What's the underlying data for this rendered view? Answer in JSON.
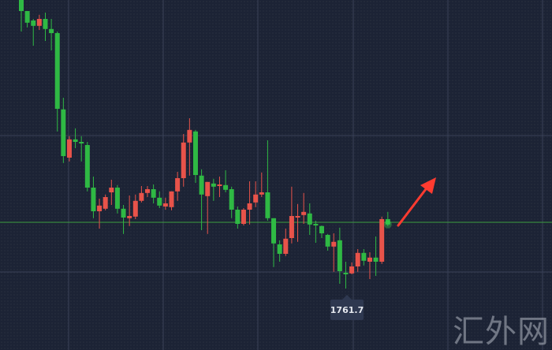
{
  "chart_data": {
    "type": "candlestick",
    "title": "",
    "xlabel": "",
    "ylabel": "",
    "colors": {
      "up": "#e8534a",
      "down": "#2fb944",
      "background": "#1c2335",
      "grid": "#3a4258",
      "current_line": "#3c9c3f",
      "arrow": "#ff3b30"
    },
    "grid": true,
    "price_label": "1761.7",
    "current_price_line": 1782.7,
    "candles": [
      [
        1853.2,
        1853.2,
        1843.2,
        1849.7
      ],
      [
        1849.7,
        1849.7,
        1844.5,
        1846.0
      ],
      [
        1846.7,
        1847.2,
        1838.7,
        1845.0
      ],
      [
        1845.0,
        1848.5,
        1843.7,
        1847.2
      ],
      [
        1847.2,
        1849.2,
        1840.2,
        1844.0
      ],
      [
        1844.0,
        1847.2,
        1837.2,
        1842.7
      ],
      [
        1842.7,
        1843.2,
        1811.5,
        1818.7
      ],
      [
        1818.5,
        1822.2,
        1801.5,
        1803.7
      ],
      [
        1803.2,
        1810.0,
        1802.0,
        1809.0
      ],
      [
        1809.0,
        1812.5,
        1806.2,
        1808.2
      ],
      [
        1808.2,
        1810.0,
        1802.0,
        1807.7
      ],
      [
        1807.2,
        1808.2,
        1792.5,
        1793.7
      ],
      [
        1793.7,
        1797.2,
        1784.0,
        1786.2
      ],
      [
        1786.2,
        1790.2,
        1780.7,
        1788.0
      ],
      [
        1787.0,
        1791.5,
        1786.5,
        1790.7
      ],
      [
        1792.2,
        1796.2,
        1788.2,
        1793.7
      ],
      [
        1793.7,
        1794.5,
        1785.5,
        1787.0
      ],
      [
        1787.0,
        1788.2,
        1779.0,
        1784.2
      ],
      [
        1784.0,
        1791.2,
        1781.5,
        1784.7
      ],
      [
        1784.5,
        1791.5,
        1783.7,
        1789.5
      ],
      [
        1789.5,
        1794.2,
        1789.0,
        1792.0
      ],
      [
        1792.0,
        1794.2,
        1790.7,
        1793.2
      ],
      [
        1793.2,
        1794.7,
        1788.7,
        1790.5
      ],
      [
        1790.5,
        1792.5,
        1787.2,
        1788.0
      ],
      [
        1787.7,
        1790.5,
        1786.7,
        1788.7
      ],
      [
        1787.5,
        1792.5,
        1786.5,
        1792.5
      ],
      [
        1792.5,
        1798.7,
        1789.5,
        1796.7
      ],
      [
        1796.7,
        1810.7,
        1794.0,
        1808.0
      ],
      [
        1808.0,
        1815.7,
        1797.5,
        1812.0
      ],
      [
        1811.5,
        1812.0,
        1795.2,
        1797.7
      ],
      [
        1797.5,
        1799.5,
        1780.2,
        1791.5
      ],
      [
        1791.0,
        1795.5,
        1779.0,
        1795.5
      ],
      [
        1795.0,
        1796.5,
        1789.5,
        1794.0
      ],
      [
        1794.2,
        1797.2,
        1790.7,
        1794.7
      ],
      [
        1794.5,
        1799.2,
        1792.2,
        1793.0
      ],
      [
        1793.2,
        1794.0,
        1784.0,
        1786.7
      ],
      [
        1786.7,
        1787.7,
        1780.7,
        1782.2
      ],
      [
        1782.2,
        1787.2,
        1781.7,
        1786.7
      ],
      [
        1786.7,
        1795.7,
        1782.0,
        1788.7
      ],
      [
        1789.0,
        1795.7,
        1787.5,
        1791.5
      ],
      [
        1791.5,
        1798.5,
        1790.7,
        1792.2
      ],
      [
        1792.2,
        1808.7,
        1783.2,
        1784.0
      ],
      [
        1784.0,
        1784.0,
        1768.5,
        1776.0
      ],
      [
        1775.7,
        1777.0,
        1770.2,
        1772.7
      ],
      [
        1772.7,
        1780.7,
        1772.0,
        1777.5
      ],
      [
        1777.7,
        1794.0,
        1776.0,
        1784.7
      ],
      [
        1784.5,
        1788.5,
        1776.5,
        1784.7
      ],
      [
        1785.0,
        1792.0,
        1782.2,
        1786.0
      ],
      [
        1785.5,
        1788.7,
        1778.7,
        1782.0
      ],
      [
        1782.2,
        1783.2,
        1776.2,
        1781.7
      ],
      [
        1781.5,
        1781.7,
        1777.7,
        1779.2
      ],
      [
        1778.7,
        1779.0,
        1773.7,
        1775.0
      ],
      [
        1775.0,
        1779.2,
        1767.0,
        1776.5
      ],
      [
        1777.0,
        1781.0,
        1763.2,
        1767.2
      ],
      [
        1766.7,
        1770.2,
        1761.7,
        1766.2
      ],
      [
        1766.5,
        1770.0,
        1766.2,
        1768.7
      ],
      [
        1768.7,
        1774.2,
        1767.0,
        1773.0
      ],
      [
        1773.0,
        1774.2,
        1769.0,
        1770.5
      ],
      [
        1770.2,
        1773.2,
        1764.7,
        1771.5
      ],
      [
        1771.5,
        1778.2,
        1765.7,
        1770.2
      ],
      [
        1770.2,
        1784.5,
        1769.5,
        1783.7
      ],
      [
        1783.7,
        1786.0,
        1781.5,
        1782.0
      ]
    ]
  },
  "watermark": "汇外网"
}
